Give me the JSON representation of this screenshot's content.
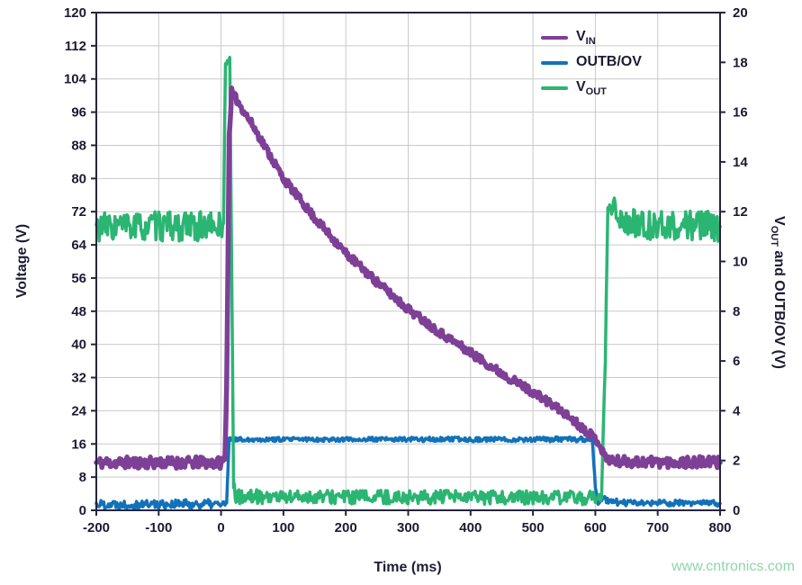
{
  "watermark": "www.cntronics.com",
  "colors": {
    "text": "#1c1b33",
    "grid": "#c9c9c9",
    "border": "#26253d",
    "background": "#ffffff",
    "watermark": "#8fd5aa",
    "vin": "#7e3f97",
    "outb_ov": "#1272b9",
    "vout": "#2bb573"
  },
  "chart_data": {
    "type": "line",
    "title": "",
    "grid": true,
    "legend_position": "top-right-inside",
    "x_axis": {
      "label": "Time (ms)",
      "min": -200,
      "max": 800,
      "tick_step": 100,
      "ticks": [
        -200,
        -100,
        0,
        100,
        200,
        300,
        400,
        500,
        600,
        700,
        800
      ]
    },
    "y_left_axis": {
      "label": "Voltage (V)",
      "min": 0,
      "max": 120,
      "tick_step": 8,
      "ticks": [
        0,
        8,
        16,
        24,
        32,
        40,
        48,
        56,
        64,
        72,
        80,
        88,
        96,
        104,
        112,
        120
      ]
    },
    "y_right_axis": {
      "label_main": "V",
      "label_sub": "OUT",
      "label_rest": " and OUTB/OV (V)",
      "min": 0,
      "max": 20,
      "tick_step": 2,
      "ticks": [
        0,
        2,
        4,
        6,
        8,
        10,
        12,
        14,
        16,
        18,
        20
      ]
    },
    "series": [
      {
        "label": "V_IN",
        "name_main": "V",
        "name_sub": "IN",
        "axis": "left",
        "color": "#7e3f97",
        "units": "V",
        "points": [
          [
            -200,
            11.5,
            1.4
          ],
          [
            0,
            11.5,
            1.4
          ],
          [
            6,
            12,
            1.0
          ],
          [
            9,
            30,
            1.0
          ],
          [
            13,
            90,
            0.8
          ],
          [
            17,
            101,
            0.8
          ],
          [
            25,
            99,
            1.0
          ],
          [
            50,
            93,
            1.0
          ],
          [
            100,
            80,
            1.0
          ],
          [
            150,
            70.5,
            1.0
          ],
          [
            200,
            62,
            1.0
          ],
          [
            250,
            55,
            1.0
          ],
          [
            300,
            48.5,
            1.0
          ],
          [
            350,
            43,
            1.0
          ],
          [
            400,
            38,
            1.0
          ],
          [
            450,
            33,
            1.0
          ],
          [
            500,
            28.5,
            1.0
          ],
          [
            550,
            23.5,
            1.0
          ],
          [
            595,
            18,
            1.0
          ],
          [
            605,
            16.5,
            1.0
          ],
          [
            615,
            13,
            1.0
          ],
          [
            630,
            11.8,
            1.3
          ],
          [
            800,
            11.5,
            1.4
          ]
        ]
      },
      {
        "label": "OUTB/OV",
        "name_main": "OUTB/OV",
        "name_sub": "",
        "axis": "right",
        "color": "#1272b9",
        "units": "V",
        "points": [
          [
            -200,
            0.25,
            0.18
          ],
          [
            5,
            0.25,
            0.18
          ],
          [
            9,
            0.3,
            0.15
          ],
          [
            13,
            2.85,
            0.08
          ],
          [
            595,
            2.85,
            0.1
          ],
          [
            600,
            1.0,
            0.15
          ],
          [
            603,
            0.3,
            0.12
          ],
          [
            615,
            0.45,
            0.15
          ],
          [
            640,
            0.3,
            0.12
          ],
          [
            800,
            0.28,
            0.12
          ]
        ]
      },
      {
        "label": "V_OUT",
        "name_main": "V",
        "name_sub": "OUT",
        "axis": "right",
        "color": "#2bb573",
        "units": "V",
        "points": [
          [
            -200,
            11.4,
            0.6
          ],
          [
            0,
            11.4,
            0.6
          ],
          [
            4,
            11.6,
            0.4
          ],
          [
            7,
            18.0,
            0.15
          ],
          [
            14,
            18.1,
            0.15
          ],
          [
            17,
            10,
            0.3
          ],
          [
            20,
            0.9,
            0.3
          ],
          [
            24,
            0.55,
            0.28
          ],
          [
            590,
            0.5,
            0.28
          ],
          [
            610,
            0.5,
            0.2
          ],
          [
            616,
            6,
            0.3
          ],
          [
            620,
            12.3,
            0.25
          ],
          [
            632,
            12.2,
            0.5
          ],
          [
            645,
            11.5,
            0.6
          ],
          [
            800,
            11.4,
            0.6
          ]
        ]
      }
    ]
  }
}
